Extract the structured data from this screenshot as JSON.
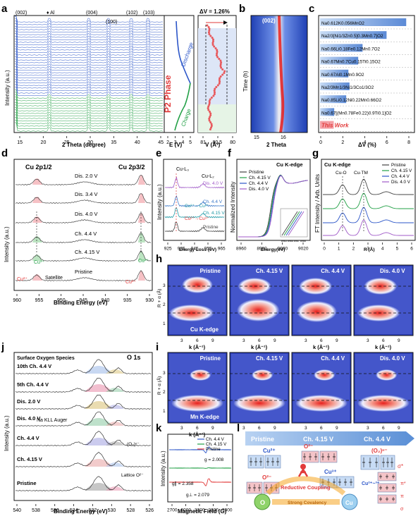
{
  "panels": {
    "a": "a",
    "b": "b",
    "c": "c",
    "d": "d",
    "e": "e",
    "f": "f",
    "g": "g",
    "h": "h",
    "i": "i",
    "j": "j",
    "k": "k",
    "l": "l"
  },
  "a": {
    "peaks": [
      "(002)",
      "♦ Al",
      "(004)",
      "(100)",
      "(102)",
      "(103)"
    ],
    "marker": "♦",
    "ylabel": "Intensity (a.u.)",
    "xlabel": "2 Theta (degree)",
    "xticks": [
      "15",
      "20",
      "25",
      "30",
      "35",
      "40",
      "45"
    ],
    "phase": "P2 Phase",
    "discharge": "Discharge",
    "charge": "Charge",
    "e_xlabel": "E (V)",
    "e_xticks": [
      "2",
      "3",
      "4",
      "5"
    ],
    "dv_label": "ΔV = 1.26%",
    "v_xlabel": "V (Å³)",
    "v_xticks": [
      "81",
      "80.5",
      "80"
    ]
  },
  "b": {
    "peak": "(002)",
    "ylabel": "Time (h)",
    "xlabel": "2 Theta",
    "xticks": [
      "15",
      "16"
    ]
  },
  "c": {
    "items": [
      "Na0.612K0.056MnO2",
      "Na2/3[Ni1/3Zn0.5]0.3Mn0.7]O2",
      "Na0.66Li0.18Fe0.12Mn0.7O2",
      "Na0.67Mn0.7Cu0.15Ti0.15O2",
      "Na0.67Al0.1Mn0.9O2",
      "Na2/3Mn1/3Ni1/3Co1/3O2",
      "Na0.85Li0.12Ni0.22Mn0.66O2",
      "Na0.67[(Mn0.78Fe0.22)0.9Ti0.1]O2",
      "This Work"
    ],
    "xlabel": "ΔV (%)",
    "xticks": [
      "0",
      "2",
      "4",
      "6",
      "8"
    ]
  },
  "d": {
    "titles": [
      "Cu 2p1/2",
      "Cu 2p3/2"
    ],
    "curves": [
      "Dis. 2.0 V",
      "Dis. 3.4 V",
      "Dis. 4.0 V",
      "Ch. 4.4 V",
      "Ch. 4.15 V",
      "Pristine"
    ],
    "cu3": "Cu³⁺",
    "cu2": "Cu²⁺",
    "satellite": "Satellite",
    "ylabel": "Intensity (a.u.)",
    "xlabel": "Binding Energy (eV)",
    "xticks": [
      "960",
      "955",
      "950",
      "945",
      "940",
      "935",
      "930"
    ]
  },
  "e": {
    "l3": "Cu-L₃",
    "l2": "Cu-L₂",
    "curves": [
      "Dis. 4.0 V",
      "Ch. 4.4 V",
      "Ch. 4.15 V",
      "Pristine"
    ],
    "t1": "Cu³⁺←Cu²⁺",
    "t2": "Cu²⁺→Cu³⁺",
    "ylabel": "Intensity (a.u.)",
    "xlabel": "Energy Loss (eV)",
    "xticks": [
      "925",
      "935",
      "945",
      "955",
      "965"
    ]
  },
  "f": {
    "title": "Cu K-edge",
    "legend": [
      "Pristine",
      "Ch. 4.15 V",
      "Ch. 4.4 V",
      "Dis. 4.0 V"
    ],
    "ylabel": "Normalized Intensity",
    "xlabel": "Energy(eV)",
    "xticks": [
      "8960",
      "8980",
      "9000",
      "9020"
    ],
    "inset_ticks": [
      "8985",
      "8986",
      "8987",
      "8988"
    ]
  },
  "g": {
    "title": "Cu K-edge",
    "legend": [
      "Pristine",
      "Ch. 4.15 V",
      "Ch. 4.4 V",
      "Dis. 4.0 V"
    ],
    "cuo": "Cu-O",
    "cutm": "Cu-TM",
    "ylabel": "FT Intensity / Arb. Units",
    "xlabel": "R (Å)",
    "xticks": [
      "0",
      "1",
      "2",
      "3",
      "4",
      "5",
      "6"
    ]
  },
  "h": {
    "titles": [
      "Pristine",
      "Ch. 4.15 V",
      "Ch. 4.4 V",
      "Dis. 4.0 V"
    ],
    "edge": "Cu K-edge",
    "ylabel": "R + α (Å)",
    "xlabel": "k (Å⁻¹)",
    "xticks": [
      "3",
      "6",
      "9"
    ],
    "yticks": [
      "1",
      "2",
      "3"
    ]
  },
  "i": {
    "titles": [
      "Pristine",
      "Ch. 4.15 V",
      "Ch. 4.4 V",
      "Dis. 4.0 V"
    ],
    "edge": "Mn K-edge",
    "ylabel": "R + α (Å)",
    "xlabel": "k (Å⁻¹)",
    "xticks": [
      "3",
      "6",
      "9"
    ],
    "yticks": [
      "1",
      "2",
      "3"
    ]
  },
  "j": {
    "title": "O 1s",
    "surface": "Surface Oxygen Species",
    "curves": [
      "10th Ch. 4.4 V",
      "5th Ch. 4.4 V",
      "Dis. 2.0 V",
      "Dis. 4.0 V",
      "Ch. 4.4 V",
      "Ch. 4.15 V",
      "Pristine"
    ],
    "auger": "Na KLL Auger",
    "o2n": "(O₂)ⁿ⁻",
    "lattice": "Lattice O²⁻",
    "ylabel": "Intensity (a.u.)",
    "xlabel": "Binding Energy (eV)",
    "xticks": [
      "540",
      "538",
      "536",
      "534",
      "532",
      "530",
      "528",
      "526"
    ]
  },
  "k": {
    "legend": [
      "Ch. 4.4 V",
      "Ch. 4.15 V",
      "Pristine"
    ],
    "g1": "g = 2.008",
    "g2": "g∥ = 2.358",
    "g3": "g⊥ = 2.079",
    "ylabel": "Intensity (a.u.)",
    "xlabel": "Magnetic Field (G)",
    "xticks": [
      "2700",
      "3000",
      "3300",
      "3600",
      "3900"
    ]
  },
  "l": {
    "stages": [
      "Pristine",
      "Ch. 4.15 V",
      "Ch. 4.4 V"
    ],
    "cu2": "Cu²⁺",
    "o2": "O²⁻",
    "cu3": "Cu³⁺",
    "o2n": "(O₂)ⁿ⁻",
    "cu23": "Cu²⁺~³⁺",
    "sigmastar": "σ*",
    "pistar": "π*",
    "pi": "π",
    "sigma": "σ",
    "reductive": "Reductive Coupling",
    "covalency": "Strong Covalency",
    "o": "O",
    "cu": "Cu"
  },
  "colors": {
    "blue": "#2b55c8",
    "green": "#22a046",
    "red": "#e23a3a",
    "pink": "#f08b95",
    "purple": "#a05ac8",
    "gray": "#555555",
    "lightblue": "#c8dcf5",
    "orange": "#f5a623"
  }
}
